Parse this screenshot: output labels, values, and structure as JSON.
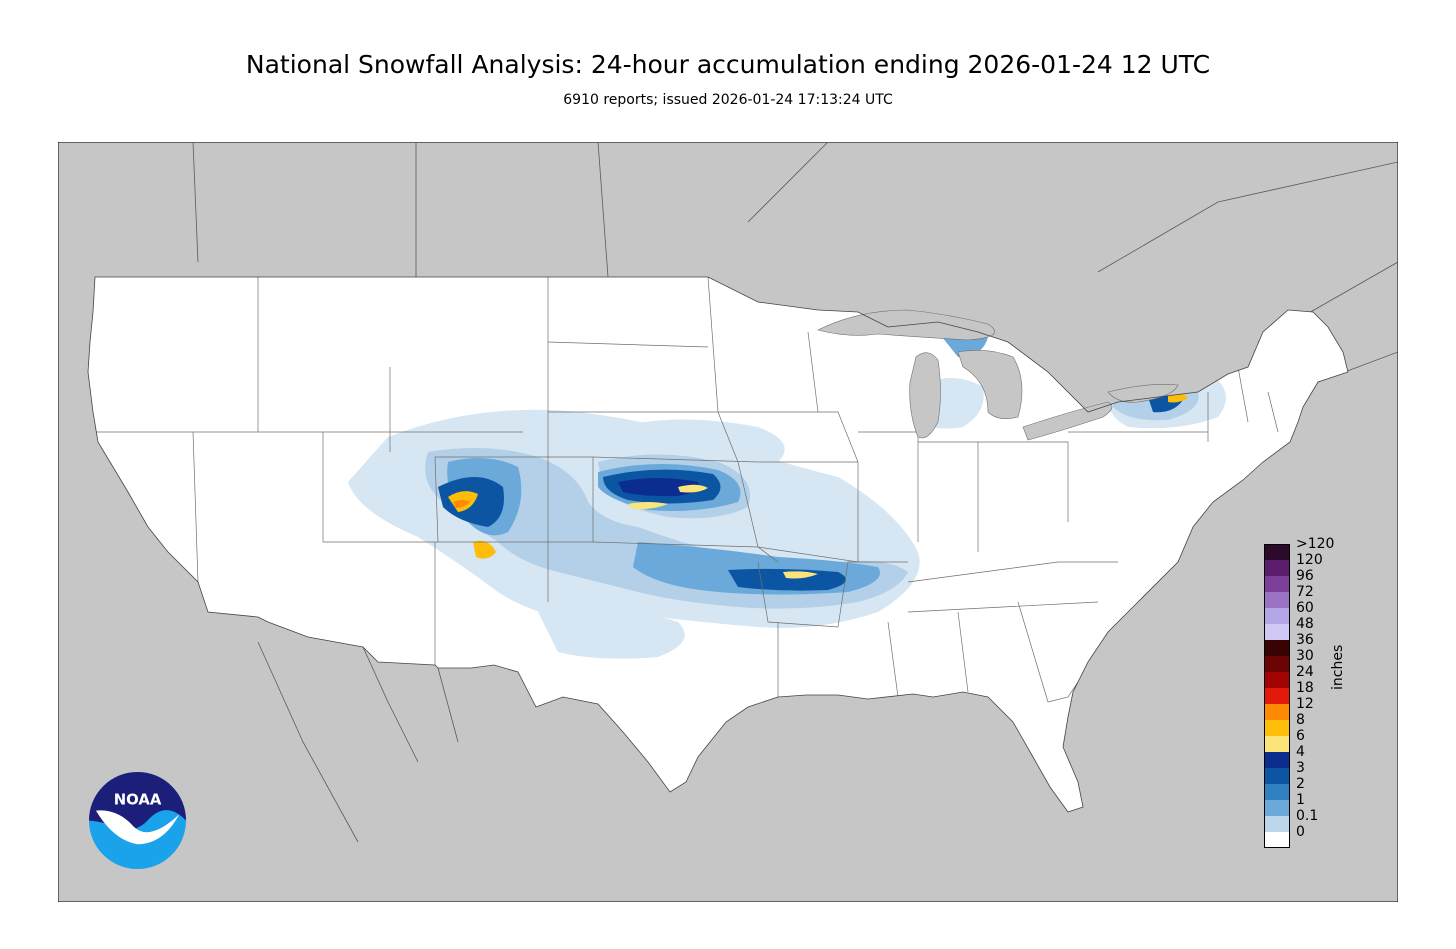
{
  "header": {
    "title": "National Snowfall Analysis: 24-hour accumulation ending 2026-01-24 12 UTC",
    "subtitle": "6910 reports; issued 2026-01-24 17:13:24 UTC"
  },
  "legend": {
    "units": "inches",
    "labels": [
      ">120",
      "120",
      "96",
      "72",
      "60",
      "48",
      "36",
      "30",
      "24",
      "18",
      "12",
      "8",
      "6",
      "4",
      "3",
      "2",
      "1",
      "0.1",
      "0"
    ],
    "colors": [
      "#2b0a2c",
      "#5a1c6b",
      "#7c3f9a",
      "#9a73c4",
      "#b4a6e6",
      "#d2c8f5",
      "#3a0303",
      "#6a0303",
      "#a10402",
      "#e31a0b",
      "#fe8a03",
      "#fdbd08",
      "#fbe57b",
      "#0a2d8f",
      "#0b55a3",
      "#2f7fc1",
      "#6aa9d9",
      "#bcd6ea",
      "#ffffff"
    ]
  },
  "logo": {
    "text": "NOAA",
    "primary": "#1b1f7a",
    "secondary": "#1aa3ea"
  },
  "map_colors": {
    "ocean_foreign": "#c6c6c6",
    "land_us": "#ffffff",
    "borders": "#6f6f6f"
  }
}
